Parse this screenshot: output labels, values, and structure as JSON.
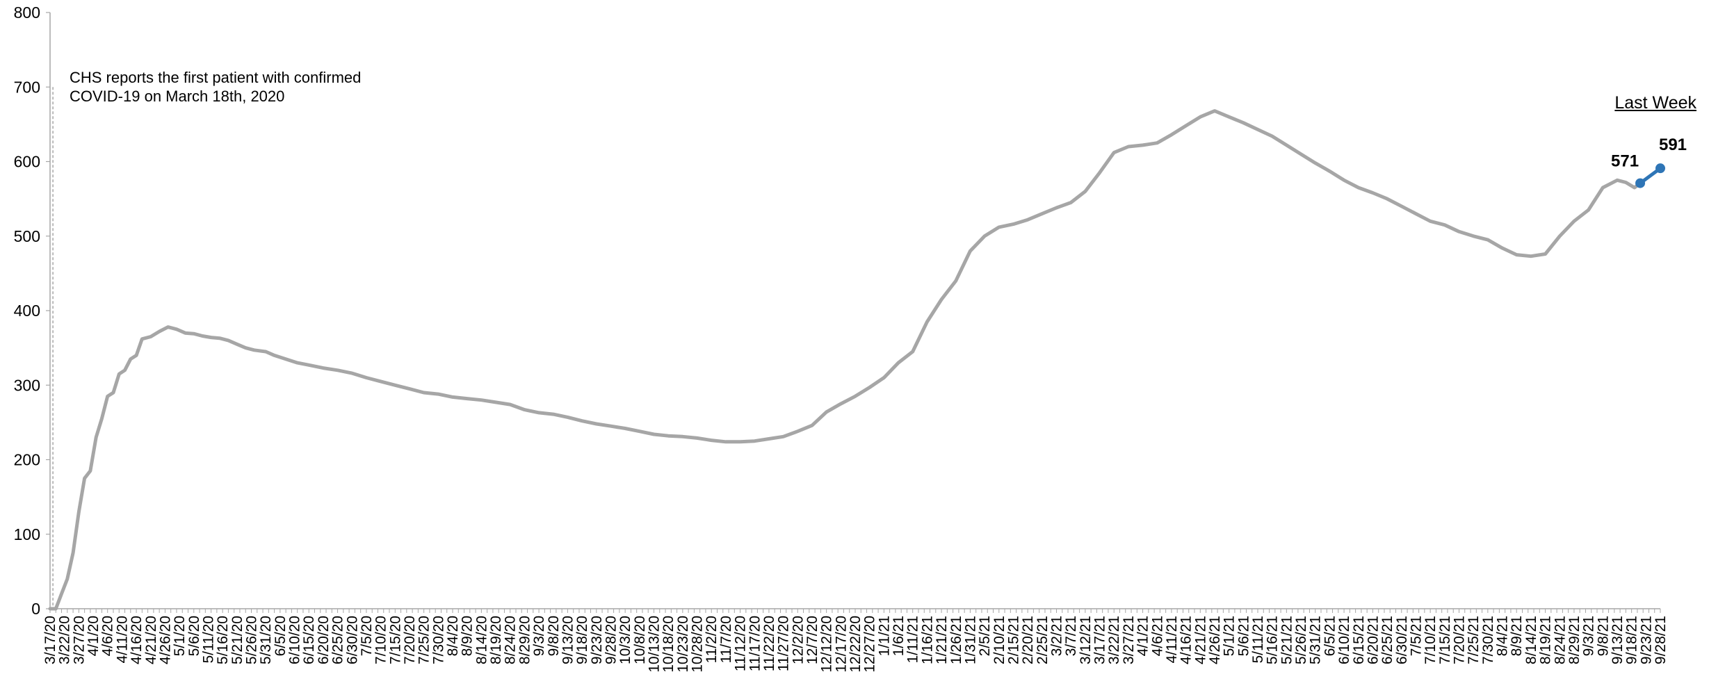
{
  "annotation": {
    "line1": "CHS reports the first patient with confirmed",
    "line2": "COVID-19 on March 18th, 2020"
  },
  "last_week_label": "Last Week",
  "colors": {
    "trend_line": "#a6a6a6",
    "last_week": "#2e75b6",
    "axis": "#a6a6a6",
    "reference_line": "#a6a6a6"
  },
  "chart_data": {
    "type": "line",
    "title": "",
    "xlabel": "",
    "ylabel": "",
    "ylim": [
      0,
      800
    ],
    "y_ticks": [
      0,
      100,
      200,
      300,
      400,
      500,
      600,
      700,
      800
    ],
    "x_tick_labels": [
      "3/17/20",
      "3/22/20",
      "3/27/20",
      "4/1/20",
      "4/6/20",
      "4/11/20",
      "4/16/20",
      "4/21/20",
      "4/26/20",
      "5/1/20",
      "5/6/20",
      "5/11/20",
      "5/16/20",
      "5/21/20",
      "5/26/20",
      "5/31/20",
      "6/5/20",
      "6/10/20",
      "6/15/20",
      "6/20/20",
      "6/25/20",
      "6/30/20",
      "7/5/20",
      "7/10/20",
      "7/15/20",
      "7/20/20",
      "7/25/20",
      "7/30/20",
      "8/4/20",
      "8/9/20",
      "8/14/20",
      "8/19/20",
      "8/24/20",
      "8/29/20",
      "9/3/20",
      "9/8/20",
      "9/13/20",
      "9/18/20",
      "9/23/20",
      "9/28/20",
      "10/3/20",
      "10/8/20",
      "10/13/20",
      "10/18/20",
      "10/23/20",
      "10/28/20",
      "11/2/20",
      "11/7/20",
      "11/12/20",
      "11/17/20",
      "11/22/20",
      "11/27/20",
      "12/2/20",
      "12/7/20",
      "12/12/20",
      "12/17/20",
      "12/22/20",
      "12/27/20",
      "1/1/21",
      "1/6/21",
      "1/11/21",
      "1/16/21",
      "1/21/21",
      "1/26/21",
      "1/31/21",
      "2/5/21",
      "2/10/21",
      "2/15/21",
      "2/20/21",
      "2/25/21",
      "3/2/21",
      "3/7/21",
      "3/12/21",
      "3/17/21",
      "3/22/21",
      "3/27/21",
      "4/1/21",
      "4/6/21",
      "4/11/21",
      "4/16/21",
      "4/21/21",
      "4/26/21",
      "5/1/21",
      "5/6/21",
      "5/11/21",
      "5/16/21",
      "5/21/21",
      "5/26/21",
      "5/31/21",
      "6/5/21",
      "6/10/21",
      "6/15/21",
      "6/20/21",
      "6/25/21",
      "6/30/21",
      "7/5/21",
      "7/10/21",
      "7/15/21",
      "7/20/21",
      "7/25/21",
      "7/30/21",
      "8/4/21",
      "8/9/21",
      "8/14/21",
      "8/19/21",
      "8/24/21",
      "8/29/21",
      "9/3/21",
      "9/8/21",
      "9/13/21",
      "9/18/21",
      "9/23/21",
      "9/28/21"
    ],
    "reference_date": "3/18/20",
    "series": [
      {
        "key": "daily",
        "points": [
          [
            "3/17/20",
            0
          ],
          [
            "3/19/20",
            0
          ],
          [
            "3/21/20",
            20
          ],
          [
            "3/23/20",
            40
          ],
          [
            "3/25/20",
            75
          ],
          [
            "3/27/20",
            130
          ],
          [
            "3/29/20",
            175
          ],
          [
            "3/31/20",
            185
          ],
          [
            "4/2/20",
            230
          ],
          [
            "4/4/20",
            255
          ],
          [
            "4/6/20",
            285
          ],
          [
            "4/8/20",
            290
          ],
          [
            "4/10/20",
            315
          ],
          [
            "4/12/20",
            320
          ],
          [
            "4/14/20",
            335
          ],
          [
            "4/16/20",
            340
          ],
          [
            "4/18/20",
            362
          ],
          [
            "4/21/20",
            365
          ],
          [
            "4/24/20",
            372
          ],
          [
            "4/27/20",
            378
          ],
          [
            "4/30/20",
            375
          ],
          [
            "5/3/20",
            370
          ],
          [
            "5/6/20",
            369
          ],
          [
            "5/9/20",
            366
          ],
          [
            "5/12/20",
            364
          ],
          [
            "5/15/20",
            363
          ],
          [
            "5/18/20",
            360
          ],
          [
            "5/21/20",
            355
          ],
          [
            "5/24/20",
            350
          ],
          [
            "5/27/20",
            347
          ],
          [
            "5/31/20",
            345
          ],
          [
            "6/3/20",
            340
          ],
          [
            "6/7/20",
            335
          ],
          [
            "6/11/20",
            330
          ],
          [
            "6/15/20",
            327
          ],
          [
            "6/20/20",
            323
          ],
          [
            "6/25/20",
            320
          ],
          [
            "6/30/20",
            316
          ],
          [
            "7/5/20",
            310
          ],
          [
            "7/10/20",
            305
          ],
          [
            "7/15/20",
            300
          ],
          [
            "7/20/20",
            295
          ],
          [
            "7/25/20",
            290
          ],
          [
            "7/30/20",
            288
          ],
          [
            "8/4/20",
            284
          ],
          [
            "8/9/20",
            282
          ],
          [
            "8/14/20",
            280
          ],
          [
            "8/19/20",
            277
          ],
          [
            "8/24/20",
            274
          ],
          [
            "8/29/20",
            267
          ],
          [
            "9/3/20",
            263
          ],
          [
            "9/8/20",
            261
          ],
          [
            "9/13/20",
            257
          ],
          [
            "9/18/20",
            252
          ],
          [
            "9/23/20",
            248
          ],
          [
            "9/28/20",
            245
          ],
          [
            "10/3/20",
            242
          ],
          [
            "10/8/20",
            238
          ],
          [
            "10/13/20",
            234
          ],
          [
            "10/18/20",
            232
          ],
          [
            "10/23/20",
            231
          ],
          [
            "10/28/20",
            229
          ],
          [
            "11/2/20",
            226
          ],
          [
            "11/7/20",
            224
          ],
          [
            "11/12/20",
            224
          ],
          [
            "11/17/20",
            225
          ],
          [
            "11/22/20",
            228
          ],
          [
            "11/27/20",
            231
          ],
          [
            "12/2/20",
            238
          ],
          [
            "12/7/20",
            246
          ],
          [
            "12/12/20",
            264
          ],
          [
            "12/17/20",
            275
          ],
          [
            "12/22/20",
            285
          ],
          [
            "12/27/20",
            297
          ],
          [
            "1/1/21",
            310
          ],
          [
            "1/6/21",
            330
          ],
          [
            "1/11/21",
            345
          ],
          [
            "1/16/21",
            385
          ],
          [
            "1/21/21",
            415
          ],
          [
            "1/26/21",
            440
          ],
          [
            "1/31/21",
            480
          ],
          [
            "2/5/21",
            500
          ],
          [
            "2/10/21",
            512
          ],
          [
            "2/15/21",
            516
          ],
          [
            "2/20/21",
            522
          ],
          [
            "2/25/21",
            530
          ],
          [
            "3/2/21",
            538
          ],
          [
            "3/7/21",
            545
          ],
          [
            "3/12/21",
            560
          ],
          [
            "3/17/21",
            585
          ],
          [
            "3/22/21",
            612
          ],
          [
            "3/27/21",
            620
          ],
          [
            "4/1/21",
            622
          ],
          [
            "4/6/21",
            625
          ],
          [
            "4/11/21",
            636
          ],
          [
            "4/16/21",
            648
          ],
          [
            "4/21/21",
            660
          ],
          [
            "4/26/21",
            668
          ],
          [
            "5/1/21",
            660
          ],
          [
            "5/6/21",
            652
          ],
          [
            "5/11/21",
            643
          ],
          [
            "5/16/21",
            634
          ],
          [
            "5/21/21",
            622
          ],
          [
            "5/26/21",
            610
          ],
          [
            "5/31/21",
            598
          ],
          [
            "6/5/21",
            587
          ],
          [
            "6/10/21",
            575
          ],
          [
            "6/15/21",
            565
          ],
          [
            "6/20/21",
            558
          ],
          [
            "6/25/21",
            550
          ],
          [
            "6/30/21",
            540
          ],
          [
            "7/5/21",
            530
          ],
          [
            "7/10/21",
            520
          ],
          [
            "7/15/21",
            515
          ],
          [
            "7/20/21",
            506
          ],
          [
            "7/25/21",
            500
          ],
          [
            "7/30/21",
            495
          ],
          [
            "8/4/21",
            484
          ],
          [
            "8/9/21",
            475
          ],
          [
            "8/14/21",
            473
          ],
          [
            "8/19/21",
            476
          ],
          [
            "8/24/21",
            500
          ],
          [
            "8/29/21",
            520
          ],
          [
            "9/3/21",
            535
          ],
          [
            "9/8/21",
            565
          ],
          [
            "9/13/21",
            575
          ],
          [
            "9/16/21",
            572
          ],
          [
            "9/19/21",
            565
          ],
          [
            "9/21/21",
            571
          ]
        ]
      },
      {
        "key": "last_week",
        "points": [
          [
            "9/21/21",
            571
          ],
          [
            "9/28/21",
            591
          ]
        ],
        "data_labels": [
          "571",
          "591"
        ]
      }
    ]
  }
}
